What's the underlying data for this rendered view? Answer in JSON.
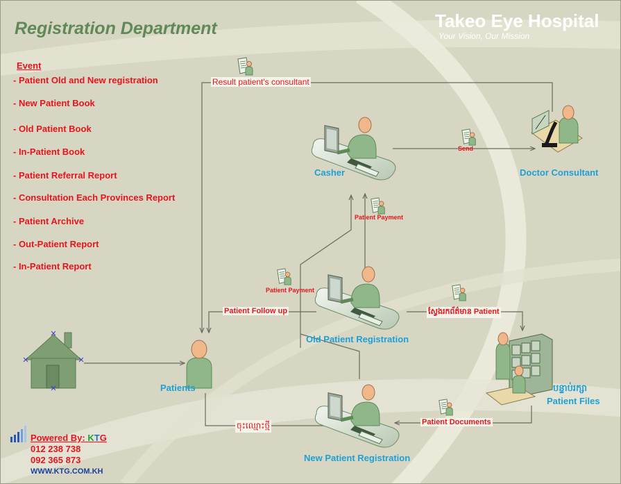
{
  "header": {
    "title": "Registration Department",
    "hospital_name": "Takeo Eye Hospital",
    "tagline": "Your Vision, Our Mission"
  },
  "events": {
    "heading": "Event",
    "items": [
      "- Patient Old and New registration",
      "- New Patient Book",
      "- Old Patient Book",
      "- In-Patient Book",
      "- Patient Referral Report",
      "- Consultation Each Provinces Report",
      "- Patient Archive",
      "- Out-Patient Report",
      "- In-Patient Report"
    ]
  },
  "nodes": {
    "casher": "Casher",
    "doctor": "Doctor Consultant",
    "old_reg": "Old Patient Registration",
    "new_reg": "New Patient Registration",
    "patients": "Patients",
    "files_kh": "បន្ទាប់រក្សា",
    "files_en": "Patient Files"
  },
  "edges": {
    "result": "Result patient's consultant",
    "send": "Send",
    "payment_top": "Patient Payment",
    "payment_left": "Patient Payment",
    "follow_up": "Patient Follow up",
    "search_info": "ស្វែងរកព័ត៌មាន Patient",
    "new_name": "ចុះឈ្មោះថ្មី",
    "documents": "Patient Documents"
  },
  "footer": {
    "powered_label": "Powered By:",
    "brand_k": "K",
    "brand_t": "T",
    "brand_g": "G",
    "phone1": "012 238 738",
    "phone2": "092 365 873",
    "website": "WWW.KTG.COM.KH"
  },
  "colors": {
    "background": "#d7d6c3",
    "title_green": "#5f8a57",
    "event_red": "#e8141d",
    "node_blue": "#1ea0d5",
    "figure_green": "#8fb78a",
    "house_green": "#7e9e74"
  },
  "icons": [
    "house-icon",
    "person-icon",
    "desk-computer-icon",
    "document-person-icon",
    "microscope-icon",
    "file-cabinet-icon",
    "signal-bars-icon"
  ]
}
